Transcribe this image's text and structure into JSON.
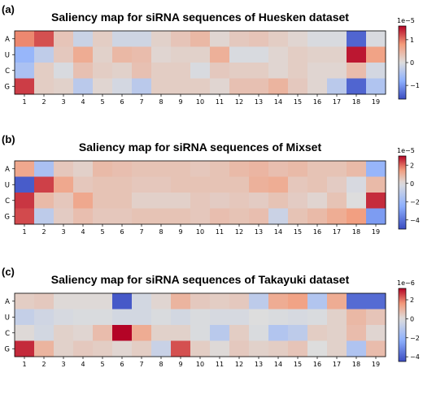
{
  "chart_data": [
    {
      "panel_label": "(a)",
      "type": "heatmap",
      "title": "Saliency map for siRNA sequences of Huesken dataset",
      "rows": [
        "A",
        "U",
        "C",
        "G"
      ],
      "columns": [
        "1",
        "2",
        "3",
        "4",
        "5",
        "6",
        "7",
        "8",
        "9",
        "10",
        "11",
        "12",
        "13",
        "14",
        "15",
        "16",
        "17",
        "18",
        "19"
      ],
      "colormap": "coolwarm",
      "scale_exponent": "1e−5",
      "vmin": -1.6,
      "vmax": 1.6,
      "colorbar_ticks": [
        1,
        0,
        -1
      ],
      "colorbar_tick_labels": [
        "1",
        "0",
        "−1"
      ],
      "values": [
        [
          0.9,
          1.2,
          0.3,
          -0.2,
          0.2,
          -0.15,
          -0.15,
          0.15,
          0.3,
          0.45,
          0.1,
          0.25,
          0.3,
          0.2,
          0.1,
          -0.05,
          -0.05,
          -1.4,
          -0.05
        ],
        [
          -0.7,
          -0.3,
          0.25,
          0.6,
          0.15,
          0.45,
          0.4,
          0.1,
          0.15,
          0.15,
          0.55,
          -0.05,
          -0.05,
          0.1,
          0.2,
          0.15,
          0.15,
          1.5,
          0.7
        ],
        [
          -0.5,
          0.2,
          -0.05,
          0.35,
          0.2,
          0.15,
          0.35,
          0.2,
          0.2,
          -0.05,
          0.25,
          0.2,
          0.2,
          0.1,
          0.2,
          0.1,
          0.1,
          0.4,
          -0.1
        ],
        [
          1.3,
          0.2,
          0.15,
          -0.35,
          0.1,
          -0.1,
          -0.35,
          0.2,
          0.2,
          0.2,
          0.1,
          0.35,
          0.35,
          0.5,
          0.25,
          0.1,
          -0.35,
          -1.4,
          -0.45
        ]
      ]
    },
    {
      "panel_label": "(b)",
      "type": "heatmap",
      "title": "Saliency map for siRNA sequences of Mixset",
      "rows": [
        "A",
        "U",
        "C",
        "G"
      ],
      "columns": [
        "1",
        "2",
        "3",
        "4",
        "5",
        "6",
        "7",
        "8",
        "9",
        "10",
        "11",
        "12",
        "13",
        "14",
        "15",
        "16",
        "17",
        "18",
        "19"
      ],
      "colormap": "coolwarm",
      "scale_exponent": "1e−5",
      "vmin": -5,
      "vmax": 3,
      "colorbar_ticks": [
        2,
        0,
        -2,
        -4
      ],
      "colorbar_tick_labels": [
        "2",
        "0",
        "−2",
        "−4"
      ],
      "values": [
        [
          1.2,
          -1.6,
          0.5,
          0.3,
          0.8,
          0.7,
          0.6,
          0.6,
          0.6,
          0.5,
          0.6,
          0.8,
          0.9,
          0.7,
          0.8,
          0.6,
          0.6,
          0.8,
          -2.2
        ],
        [
          -4.6,
          2.4,
          1.2,
          0.5,
          0.6,
          0.6,
          0.5,
          0.5,
          0.6,
          0.6,
          0.6,
          0.6,
          1.0,
          1.1,
          0.5,
          0.6,
          0.4,
          -0.2,
          0.8
        ],
        [
          2.5,
          0.8,
          0.5,
          1.2,
          0.6,
          0.6,
          0.3,
          0.3,
          0.3,
          0.5,
          0.4,
          0.5,
          0.4,
          0.6,
          0.4,
          0.2,
          0.6,
          0.0,
          2.6
        ],
        [
          2.3,
          -1.0,
          0.4,
          0.7,
          0.5,
          0.5,
          0.6,
          0.6,
          0.6,
          0.5,
          0.7,
          0.6,
          0.7,
          -0.6,
          0.6,
          0.8,
          1.1,
          1.4,
          -3.0
        ]
      ]
    },
    {
      "panel_label": "(c)",
      "type": "heatmap",
      "title": "Saliency map for siRNA sequences of Takayuki dataset",
      "rows": [
        "A",
        "U",
        "C",
        "G"
      ],
      "columns": [
        "1",
        "2",
        "3",
        "4",
        "5",
        "6",
        "7",
        "8",
        "9",
        "10",
        "11",
        "12",
        "13",
        "14",
        "15",
        "16",
        "17",
        "18",
        "19"
      ],
      "colormap": "coolwarm",
      "scale_exponent": "1e−6",
      "vmin": -4.5,
      "vmax": 3.2,
      "colorbar_ticks": [
        2,
        0,
        -2,
        -4
      ],
      "colorbar_tick_labels": [
        "2",
        "0",
        "−2",
        "−4"
      ],
      "values": [
        [
          0.4,
          0.5,
          0.1,
          0.1,
          0.1,
          -4.2,
          -0.3,
          0.2,
          1.0,
          0.5,
          0.4,
          0.5,
          -0.9,
          1.2,
          1.4,
          -1.2,
          1.2,
          -3.8,
          -3.8
        ],
        [
          -0.7,
          -0.4,
          -0.2,
          -0.1,
          -0.1,
          -0.3,
          -0.3,
          -0.1,
          -0.3,
          -0.1,
          -0.2,
          -0.2,
          0.0,
          -0.1,
          -0.2,
          -0.1,
          0.3,
          0.9,
          0.6
        ],
        [
          0.1,
          -0.3,
          0.3,
          0.2,
          0.8,
          3.2,
          1.2,
          0.3,
          0.3,
          -0.1,
          -1.0,
          0.4,
          -0.1,
          -1.2,
          -0.9,
          0.4,
          0.3,
          0.8,
          0.2
        ],
        [
          2.8,
          1.0,
          0.3,
          0.5,
          0.4,
          0.2,
          0.4,
          -0.6,
          2.4,
          0.4,
          0.1,
          0.5,
          0.3,
          0.4,
          0.6,
          0.0,
          0.3,
          -1.3,
          0.8
        ]
      ]
    }
  ]
}
